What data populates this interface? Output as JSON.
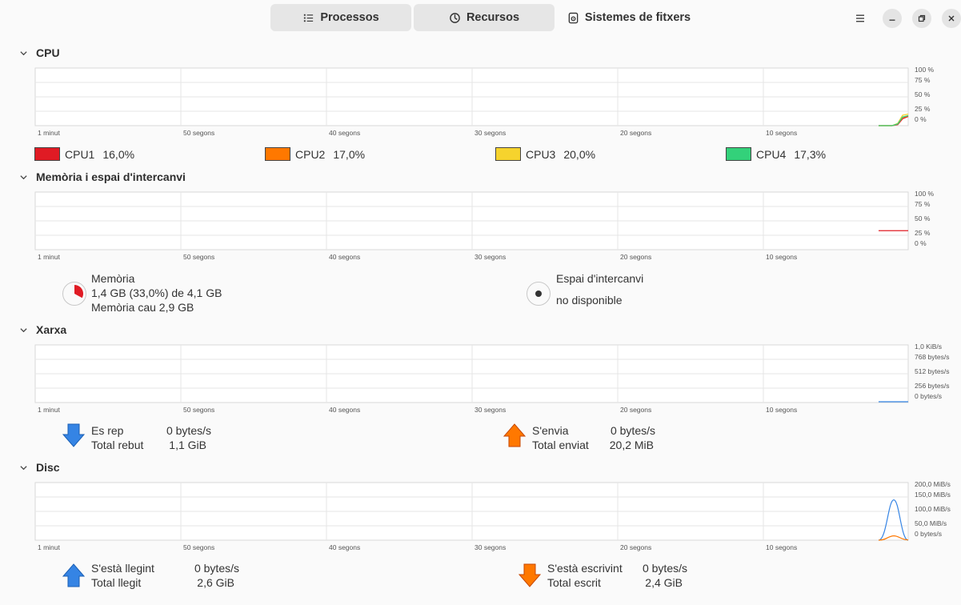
{
  "header": {
    "tabs": [
      {
        "label": "Processos",
        "icon": "list-icon"
      },
      {
        "label": "Recursos",
        "icon": "gauge-icon"
      },
      {
        "label": "Sistemes de fitxers",
        "icon": "disk-icon"
      }
    ]
  },
  "time_axis": [
    "1 minut",
    "50 segons",
    "40 segons",
    "30 segons",
    "20 segons",
    "10 segons"
  ],
  "cpu": {
    "title": "CPU",
    "y_ticks": [
      "100 %",
      "75 %",
      "50 %",
      "25 %",
      "0 %"
    ],
    "legend": [
      {
        "name": "CPU1",
        "value": "16,0%",
        "color": "#e01b24"
      },
      {
        "name": "CPU2",
        "value": "17,0%",
        "color": "#ff7800"
      },
      {
        "name": "CPU3",
        "value": "20,0%",
        "color": "#f6d32d"
      },
      {
        "name": "CPU4",
        "value": "17,3%",
        "color": "#33d17a"
      }
    ]
  },
  "memory": {
    "title": "Memòria i espai d'intercanvi",
    "y_ticks": [
      "100 %",
      "75 %",
      "50 %",
      "25 %",
      "0 %"
    ],
    "ram_label": "Memòria",
    "ram_usage": "1,4 GB (33,0%) de 4,1 GB",
    "ram_cache": "Memòria cau 2,9 GB",
    "ram_fraction": 0.33,
    "swap_label": "Espai d'intercanvi",
    "swap_status": "no disponible"
  },
  "network": {
    "title": "Xarxa",
    "y_ticks": [
      "1,0 KiB/s",
      "768 bytes/s",
      "512 bytes/s",
      "256 bytes/s",
      "0 bytes/s"
    ],
    "recv_label": "Es rep",
    "recv_value": "0 bytes/s",
    "recv_total_label": "Total rebut",
    "recv_total": "1,1 GiB",
    "send_label": "S'envia",
    "send_value": "0 bytes/s",
    "send_total_label": "Total enviat",
    "send_total": "20,2 MiB"
  },
  "disk": {
    "title": "Disc",
    "y_ticks": [
      "200,0 MiB/s",
      "150,0 MiB/s",
      "100,0 MiB/s",
      "50,0 MiB/s",
      "0 bytes/s"
    ],
    "read_label": "S'està llegint",
    "read_value": "0 bytes/s",
    "read_total_label": "Total llegit",
    "read_total": "2,6 GiB",
    "write_label": "S'està escrivint",
    "write_value": "0 bytes/s",
    "write_total_label": "Total escrit",
    "write_total": "2,4 GiB"
  },
  "colors": {
    "read": "#3584e4",
    "write": "#ff7800",
    "accent": "#e01b24"
  }
}
